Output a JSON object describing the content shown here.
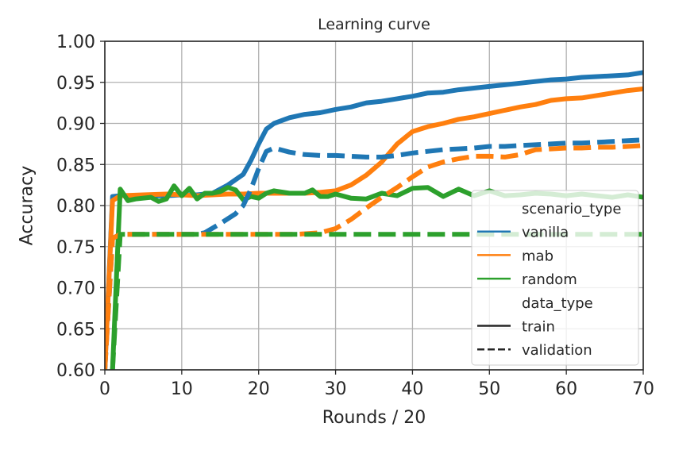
{
  "chart": {
    "title": "Learning curve",
    "xlabel": "Rounds / 20",
    "ylabel": "Accuracy"
  },
  "legend": {
    "group1_title": "scenario_type",
    "group1_items": [
      {
        "label": "vanilla",
        "color": "#1f77b4"
      },
      {
        "label": "mab",
        "color": "#ff7f0e"
      },
      {
        "label": "random",
        "color": "#2ca02c"
      }
    ],
    "group2_title": "data_type",
    "group2_items": [
      {
        "label": "train",
        "style": "solid"
      },
      {
        "label": "validation",
        "style": "dashed"
      }
    ]
  },
  "chart_data": {
    "type": "line",
    "title": "Learning curve",
    "xlabel": "Rounds / 20",
    "ylabel": "Accuracy",
    "xlim": [
      0,
      70
    ],
    "ylim": [
      0.6,
      1.0
    ],
    "xticks": [
      0,
      10,
      20,
      30,
      40,
      50,
      60,
      70
    ],
    "yticks": [
      0.6,
      0.65,
      0.7,
      0.75,
      0.8,
      0.85,
      0.9,
      0.95,
      1.0
    ],
    "ytick_labels": [
      "0.60",
      "0.65",
      "0.70",
      "0.75",
      "0.80",
      "0.85",
      "0.90",
      "0.95",
      "1.00"
    ],
    "grid": true,
    "legend_position": "lower right",
    "series": [
      {
        "name": "vanilla",
        "data_type": "train",
        "color": "#1f77b4",
        "dash": "solid",
        "x": [
          0,
          1,
          2,
          5,
          8,
          10,
          12,
          14,
          16,
          18,
          19,
          20,
          21,
          22,
          24,
          26,
          28,
          30,
          32,
          34,
          36,
          38,
          40,
          42,
          44,
          46,
          48,
          50,
          52,
          54,
          56,
          58,
          60,
          62,
          64,
          66,
          68,
          70
        ],
        "y": [
          0.6,
          0.811,
          0.812,
          0.812,
          0.812,
          0.813,
          0.813,
          0.815,
          0.825,
          0.838,
          0.855,
          0.875,
          0.893,
          0.9,
          0.907,
          0.911,
          0.913,
          0.917,
          0.92,
          0.925,
          0.927,
          0.93,
          0.933,
          0.937,
          0.938,
          0.941,
          0.943,
          0.945,
          0.947,
          0.949,
          0.951,
          0.953,
          0.954,
          0.956,
          0.957,
          0.958,
          0.959,
          0.962
        ]
      },
      {
        "name": "mab",
        "data_type": "train",
        "color": "#ff7f0e",
        "dash": "solid",
        "x": [
          0,
          1,
          2,
          5,
          8,
          10,
          12,
          14,
          16,
          18,
          20,
          22,
          24,
          26,
          28,
          30,
          32,
          34,
          36,
          38,
          40,
          42,
          44,
          46,
          48,
          50,
          52,
          54,
          56,
          58,
          60,
          62,
          64,
          66,
          68,
          70
        ],
        "y": [
          0.6,
          0.806,
          0.812,
          0.813,
          0.814,
          0.813,
          0.812,
          0.813,
          0.814,
          0.814,
          0.815,
          0.815,
          0.815,
          0.815,
          0.816,
          0.818,
          0.825,
          0.837,
          0.853,
          0.875,
          0.89,
          0.896,
          0.9,
          0.905,
          0.908,
          0.912,
          0.916,
          0.92,
          0.923,
          0.928,
          0.93,
          0.931,
          0.934,
          0.937,
          0.94,
          0.942
        ]
      },
      {
        "name": "random",
        "data_type": "train",
        "color": "#2ca02c",
        "dash": "solid",
        "x": [
          1,
          2,
          3,
          4,
          6,
          7,
          8,
          9,
          10,
          11,
          12,
          13,
          14,
          15,
          16,
          17,
          18,
          19,
          20,
          21,
          22,
          24,
          26,
          27,
          28,
          29,
          30,
          32,
          34,
          36,
          38,
          40,
          42,
          44,
          46,
          48,
          50,
          52,
          54,
          56,
          58,
          60,
          62,
          64,
          66,
          68,
          70
        ],
        "y": [
          0.6,
          0.82,
          0.806,
          0.808,
          0.81,
          0.805,
          0.808,
          0.824,
          0.812,
          0.821,
          0.808,
          0.815,
          0.815,
          0.817,
          0.822,
          0.819,
          0.807,
          0.811,
          0.809,
          0.815,
          0.818,
          0.815,
          0.815,
          0.819,
          0.811,
          0.811,
          0.814,
          0.809,
          0.808,
          0.815,
          0.812,
          0.821,
          0.822,
          0.811,
          0.82,
          0.812,
          0.818,
          0.812,
          0.813,
          0.815,
          0.814,
          0.812,
          0.814,
          0.812,
          0.81,
          0.813,
          0.81
        ]
      },
      {
        "name": "vanilla",
        "data_type": "validation",
        "color": "#1f77b4",
        "dash": "dashed",
        "x": [
          0,
          1,
          2,
          5,
          10,
          12,
          13,
          15,
          17,
          18,
          19,
          20,
          21,
          22,
          24,
          26,
          28,
          30,
          32,
          34,
          36,
          38,
          40,
          42,
          44,
          46,
          48,
          50,
          52,
          54,
          56,
          58,
          60,
          62,
          64,
          66,
          68,
          70
        ],
        "y": [
          0.6,
          0.76,
          0.765,
          0.765,
          0.765,
          0.765,
          0.767,
          0.778,
          0.79,
          0.8,
          0.82,
          0.845,
          0.866,
          0.87,
          0.865,
          0.862,
          0.861,
          0.861,
          0.86,
          0.859,
          0.859,
          0.861,
          0.864,
          0.866,
          0.868,
          0.869,
          0.87,
          0.872,
          0.872,
          0.873,
          0.874,
          0.875,
          0.876,
          0.876,
          0.877,
          0.878,
          0.879,
          0.88
        ]
      },
      {
        "name": "mab",
        "data_type": "validation",
        "color": "#ff7f0e",
        "dash": "dashed",
        "x": [
          0,
          1,
          2,
          5,
          10,
          15,
          20,
          25,
          28,
          30,
          32,
          34,
          36,
          38,
          40,
          42,
          44,
          46,
          48,
          50,
          52,
          54,
          56,
          58,
          60,
          62,
          64,
          66,
          68,
          70
        ],
        "y": [
          0.6,
          0.76,
          0.765,
          0.765,
          0.765,
          0.765,
          0.765,
          0.765,
          0.767,
          0.772,
          0.783,
          0.797,
          0.81,
          0.822,
          0.835,
          0.847,
          0.853,
          0.857,
          0.86,
          0.86,
          0.859,
          0.862,
          0.868,
          0.869,
          0.87,
          0.87,
          0.871,
          0.871,
          0.872,
          0.873
        ]
      },
      {
        "name": "random",
        "data_type": "validation",
        "color": "#2ca02c",
        "dash": "dashed",
        "x": [
          1,
          2,
          5,
          10,
          20,
          30,
          40,
          50,
          60,
          70
        ],
        "y": [
          0.6,
          0.765,
          0.765,
          0.765,
          0.765,
          0.765,
          0.765,
          0.765,
          0.765,
          0.765
        ]
      }
    ]
  }
}
